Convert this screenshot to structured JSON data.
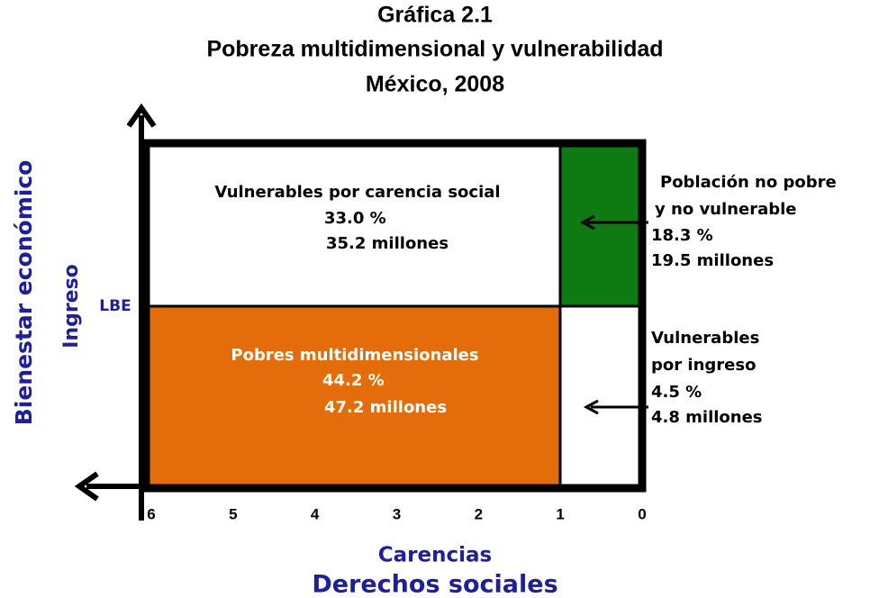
{
  "title": [
    "Gráfica 2.1",
    "Pobreza multidimensional y vulnerabilidad",
    "México, 2008"
  ],
  "y_axis": {
    "label": "Bienestar económico",
    "sublabel": "Ingreso",
    "threshold": "LBE"
  },
  "x_axis": {
    "label": "Carencias",
    "sublabel": "Derechos sociales",
    "ticks": [
      6,
      5,
      4,
      3,
      2,
      1,
      0
    ]
  },
  "regions": [
    {
      "name": [
        "Vulnerables por carencia social"
      ],
      "percent": "33.0 %",
      "population": "35.2 millones"
    },
    {
      "name": [
        "Pobres multidimensionales"
      ],
      "percent": "44.2 %",
      "population": "47.2 millones"
    },
    {
      "name": [
        "Población no pobre",
        "y no vulnerable"
      ],
      "percent": "18.3 %",
      "population": "19.5 millones"
    },
    {
      "name": [
        "Vulnerables",
        "por ingreso"
      ],
      "percent": "4.5 %",
      "population": "4.8 millones"
    }
  ]
}
